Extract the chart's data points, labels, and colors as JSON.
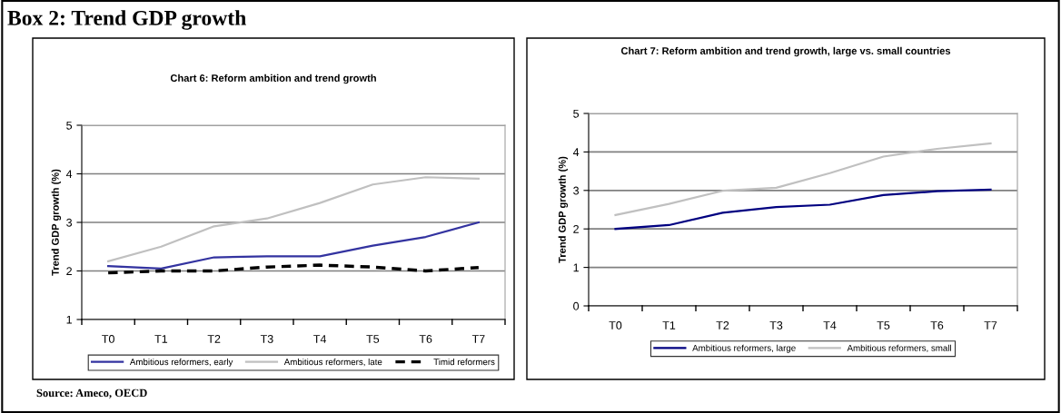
{
  "chart_data": [
    {
      "type": "line",
      "title": "Chart 6: Reform ambition and trend growth",
      "ylabel": "Trend GDP growth (%)",
      "annotations": [
        "Box 2: Trend GDP growth",
        "Source: Ameco, OECD"
      ],
      "categories": [
        "T0",
        "T1",
        "T2",
        "T3",
        "T4",
        "T5",
        "T6",
        "T7"
      ],
      "series": [
        {
          "name": "Ambitious reformers, early",
          "color": "#3333a0",
          "values": [
            2.1,
            2.05,
            2.28,
            2.3,
            2.3,
            2.52,
            2.7,
            3.0
          ]
        },
        {
          "name": "Ambitious reformers, late",
          "color": "#c0c0c0",
          "values": [
            2.2,
            2.5,
            2.92,
            3.08,
            3.4,
            3.78,
            3.93,
            3.9
          ]
        },
        {
          "name": "Timid reformers",
          "color": "#000000",
          "line_style": "dashed",
          "values": [
            1.96,
            2.0,
            2.0,
            2.08,
            2.12,
            2.08,
            2.0,
            2.07
          ]
        }
      ],
      "ylim": [
        1,
        5
      ],
      "yticks": [
        1,
        2,
        3,
        4,
        5
      ],
      "grid": "y",
      "legend": "bottom",
      "marker": "none",
      "line_style": "solid"
    },
    {
      "type": "line",
      "title": "Chart 7: Reform ambition and trend growth, large vs. small countries",
      "ylabel": "Trend GDP growth (%)",
      "categories": [
        "T0",
        "T1",
        "T2",
        "T3",
        "T4",
        "T5",
        "T6",
        "T7"
      ],
      "series": [
        {
          "name": "Ambitious reformers, large",
          "color": "#000080",
          "values": [
            2.0,
            2.1,
            2.42,
            2.57,
            2.63,
            2.88,
            2.98,
            3.02
          ]
        },
        {
          "name": "Ambitious reformers, small",
          "color": "#c0c0c0",
          "values": [
            2.36,
            2.65,
            2.99,
            3.07,
            3.45,
            3.88,
            4.08,
            4.22
          ]
        }
      ],
      "ylim": [
        0,
        5
      ],
      "yticks": [
        0,
        1,
        2,
        3,
        4,
        5
      ],
      "grid": "y",
      "legend": "bottom",
      "marker": "none",
      "line_style": "solid"
    }
  ]
}
